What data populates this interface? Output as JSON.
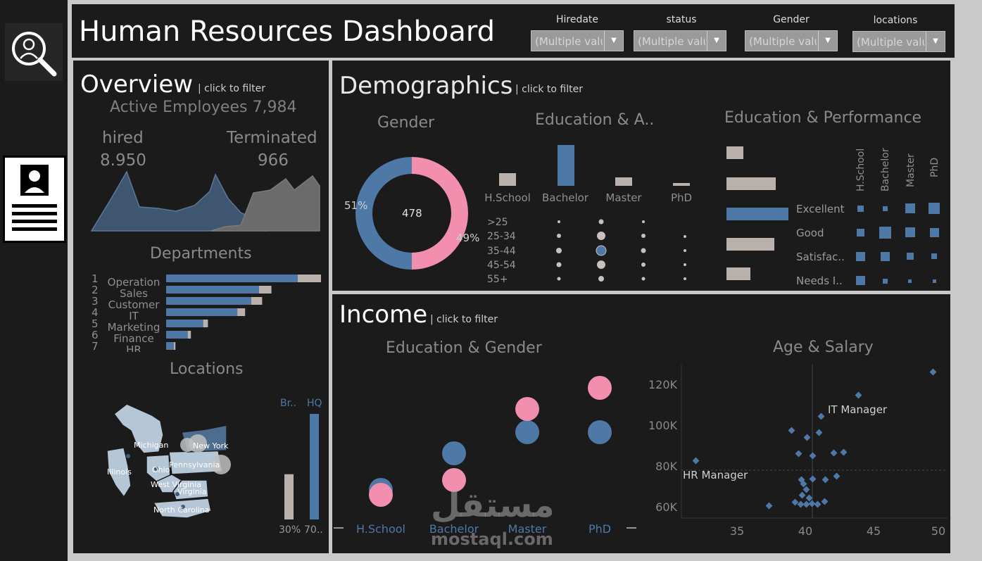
{
  "header": {
    "title": "Human Resources Dashboard",
    "filters": [
      {
        "label": "Hiredate",
        "value": "(Multiple values)"
      },
      {
        "label": "status",
        "value": "(Multiple values)"
      },
      {
        "label": "Gender",
        "value": "(Multiple values)"
      },
      {
        "label": "locations",
        "value": "(Multiple values)"
      }
    ]
  },
  "overview": {
    "title": "Overview",
    "click_hint": "| click to filter",
    "active_employees": "Active Employees 7,984",
    "hired_label": "hired",
    "hired_value": "8.950",
    "terminated_label": "Terminated",
    "terminated_value": "966",
    "departments_title": "Departments",
    "departments": [
      {
        "rank": "1",
        "name": "Operation",
        "active": 0.85,
        "total": 1.0
      },
      {
        "rank": "2",
        "name": "Sales",
        "active": 0.6,
        "total": 0.68
      },
      {
        "rank": "3",
        "name": "Customer",
        "active": 0.55,
        "total": 0.62
      },
      {
        "rank": "4",
        "name": "IT",
        "active": 0.46,
        "total": 0.51
      },
      {
        "rank": "5",
        "name": "Marketing",
        "active": 0.24,
        "total": 0.27
      },
      {
        "rank": "6",
        "name": "Finance",
        "active": 0.14,
        "total": 0.16
      },
      {
        "rank": "7",
        "name": "HR",
        "active": 0.05,
        "total": 0.06
      }
    ],
    "locations_title": "Locations",
    "map_labels": [
      "Michigan",
      "New York",
      "Illinois",
      "Ohio",
      "Pennsylvania",
      "West Virginia",
      "Virginia",
      "North Carolina"
    ],
    "location_split": {
      "branch_label": "Br..",
      "hq_label": "HQ",
      "branch_pct_label": "30%",
      "hq_pct_label": "70..",
      "branch": 30,
      "hq": 70
    }
  },
  "demographics": {
    "title": "Demographics",
    "click_hint": "| click to filter",
    "gender_title": "Gender",
    "gender_center": "478",
    "gender_left_pct": "51%",
    "gender_right_pct": "49%",
    "edu_age_title": "Education & A..",
    "education_levels": [
      "H.School",
      "Bachelor",
      "Master",
      "PhD"
    ],
    "age_groups": [
      ">25",
      "25-34",
      "35-44",
      "45-54",
      "55+"
    ],
    "edu_perf_title": "Education & Performance",
    "performance_levels": [
      "Excellent",
      "Good",
      "Satisfac..",
      "Needs I.."
    ]
  },
  "income": {
    "title": "Income",
    "click_hint": "| click to filter",
    "edu_gender_title": "Education & Gender",
    "edu_gender_categories": [
      "H.School",
      "Bachelor",
      "Master",
      "PhD"
    ],
    "age_salary_title": "Age & Salary",
    "y_ticks": [
      "120K",
      "100K",
      "80K",
      "60K"
    ],
    "x_ticks": [
      "35",
      "40",
      "45",
      "50"
    ],
    "annotations": [
      "IT Manager",
      "HR Manager"
    ]
  },
  "watermark": {
    "arabic": "مستقل",
    "latin": "mostaql.com"
  },
  "colors": {
    "blue": "#4e79a7",
    "pink": "#f28eae",
    "grey": "#bab0ac",
    "bg": "#1b1b1b"
  }
}
